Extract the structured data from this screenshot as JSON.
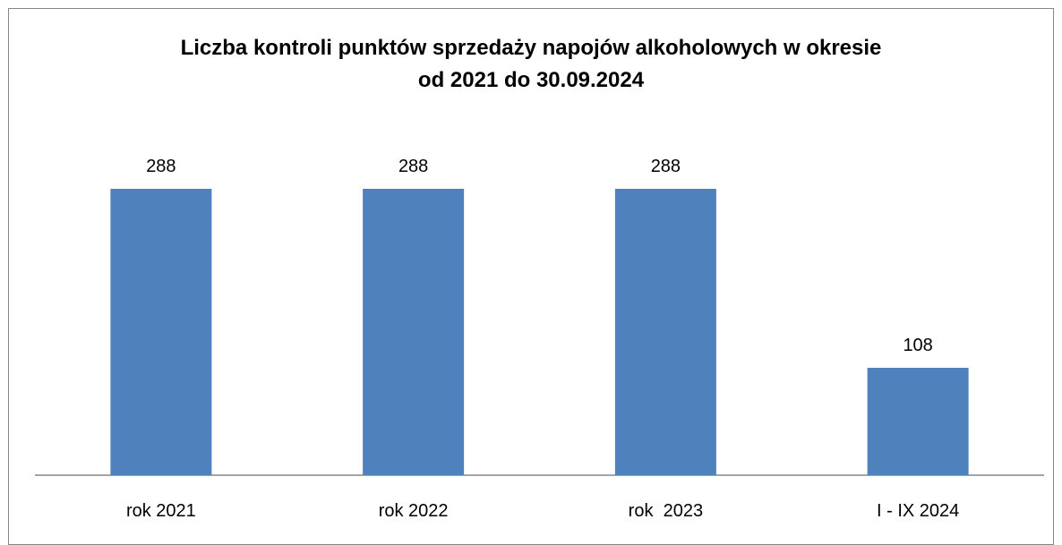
{
  "chart_data": {
    "type": "bar",
    "title": "Liczba kontroli punktów sprzedaży napojów alkoholowych w okresie\nod 2021 do 30.09.2024",
    "categories": [
      "rok 2021",
      "rok 2022",
      "rok  2023",
      "I - IX 2024"
    ],
    "values": [
      288,
      288,
      288,
      108
    ],
    "data_labels": [
      "288",
      "288",
      "288",
      "108"
    ],
    "xlabel": "",
    "ylabel": "",
    "ylim": [
      0,
      288
    ],
    "grid": false,
    "legend": "none",
    "bar_color": "#4f81bd"
  }
}
